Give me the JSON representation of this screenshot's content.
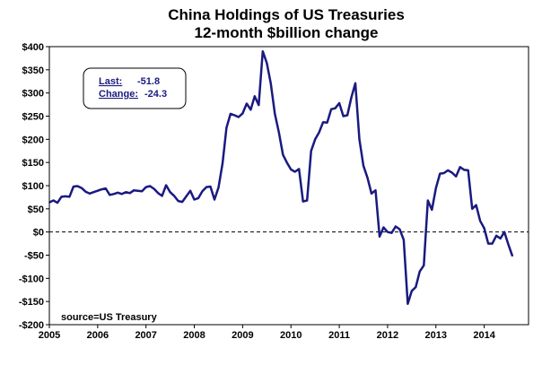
{
  "chart_data": {
    "type": "line",
    "title": "China Holdings of US Treasuries",
    "subtitle": "12-month $billion change",
    "source": "source=US Treasury",
    "callout": {
      "last_label": "Last:",
      "last_value": "-51.8",
      "change_label": "Change:",
      "change_value": "-24.3"
    },
    "ylim": [
      -200,
      400
    ],
    "xlim": [
      2005,
      2014.917
    ],
    "y_ticks": [
      -200,
      -150,
      -100,
      -50,
      0,
      50,
      100,
      150,
      200,
      250,
      300,
      350,
      400
    ],
    "y_tick_labels": [
      "-$200",
      "-$150",
      "-$100",
      "-$50",
      "$0",
      "$50",
      "$100",
      "$150",
      "$200",
      "$250",
      "$300",
      "$350",
      "$400"
    ],
    "x_ticks": [
      2005,
      2006,
      2007,
      2008,
      2009,
      2010,
      2011,
      2012,
      2013,
      2014
    ],
    "x_tick_labels": [
      "2005",
      "2006",
      "2007",
      "2008",
      "2009",
      "2010",
      "2011",
      "2012",
      "2013",
      "2014"
    ],
    "reference_line": 0,
    "line_color": "#1a1a80",
    "series": [
      {
        "name": "12-month change",
        "start_year": 2005,
        "start_month": 1,
        "values": [
          64,
          68,
          63,
          76,
          77,
          76,
          98,
          99,
          95,
          87,
          83,
          86,
          89,
          92,
          94,
          80,
          82,
          85,
          82,
          86,
          84,
          90,
          89,
          88,
          97,
          99,
          93,
          84,
          78,
          101,
          86,
          78,
          67,
          65,
          77,
          89,
          70,
          73,
          88,
          97,
          98,
          70,
          96,
          148,
          225,
          255,
          252,
          248,
          256,
          277,
          264,
          293,
          274,
          390,
          365,
          320,
          255,
          215,
          167,
          150,
          135,
          130,
          136,
          66,
          68,
          175,
          200,
          215,
          237,
          236,
          265,
          267,
          278,
          250,
          252,
          290,
          321,
          200,
          143,
          117,
          83,
          90,
          -10,
          10,
          0,
          -2,
          12,
          6,
          -17,
          -155,
          -127,
          -119,
          -85,
          -72,
          68,
          48,
          95,
          126,
          127,
          133,
          128,
          120,
          140,
          134,
          133,
          50,
          58,
          24,
          8,
          -25,
          -25,
          -8,
          -14,
          0,
          -27,
          -51.8
        ]
      }
    ]
  }
}
